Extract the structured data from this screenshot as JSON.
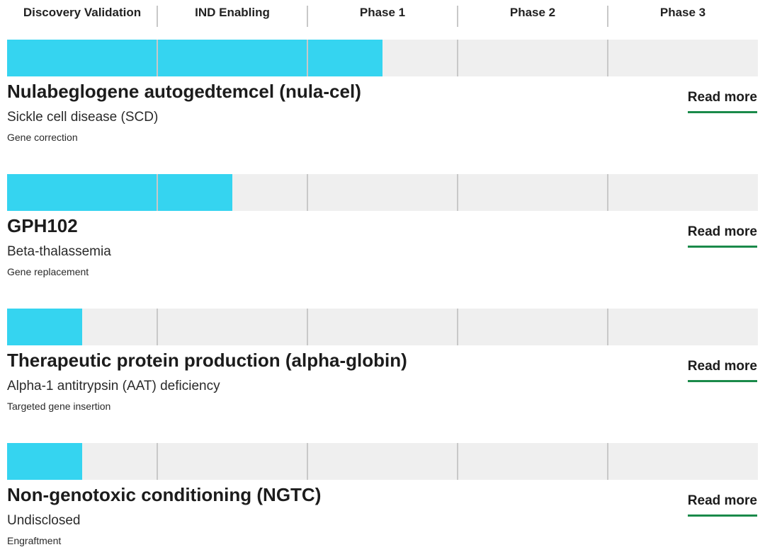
{
  "header": {
    "stages": [
      "Discovery Validation",
      "IND Enabling",
      "Phase 1",
      "Phase 2",
      "Phase 3"
    ]
  },
  "programs": [
    {
      "name": "Nulabeglogene autogedtemcel (nula-cel)",
      "indication": "Sickle cell disease (SCD)",
      "modality": "Gene correction",
      "progress": 2.5,
      "link": "Read more"
    },
    {
      "name": "GPH102",
      "indication": "Beta-thalassemia",
      "modality": "Gene replacement",
      "progress": 1.5,
      "link": "Read more"
    },
    {
      "name": "Therapeutic protein production (alpha-globin)",
      "indication": "Alpha-1 antitrypsin (AAT) deficiency",
      "modality": "Targeted gene insertion",
      "progress": 0.5,
      "link": "Read more"
    },
    {
      "name": "Non-genotoxic conditioning (NGTC)",
      "indication": "Undisclosed",
      "modality": "Engraftment",
      "progress": 0.5,
      "link": "Read more"
    }
  ]
}
